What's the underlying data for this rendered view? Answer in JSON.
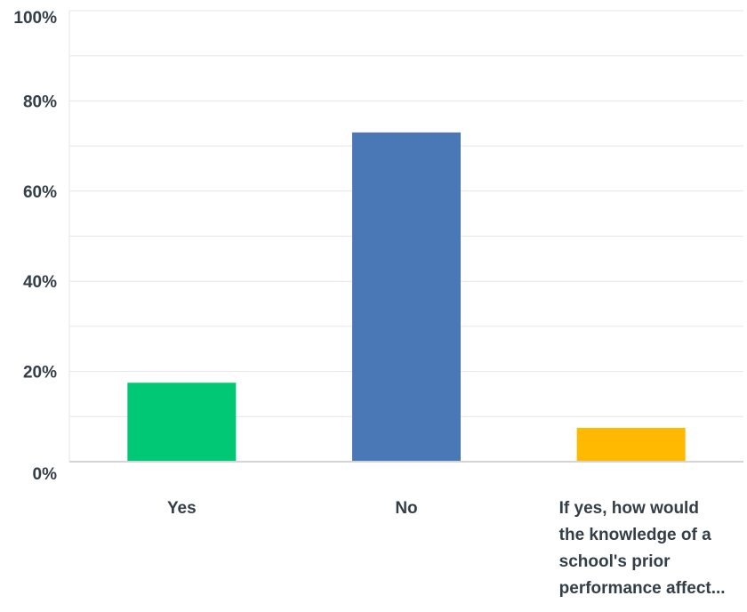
{
  "chart_data": {
    "type": "bar",
    "categories": [
      "Yes",
      "No",
      "If yes, how would the knowledge of a school's prior performance affect..."
    ],
    "category_label_lines": [
      [
        "Yes"
      ],
      [
        "No"
      ],
      [
        "If yes, how would",
        "the knowledge of a",
        "school's prior",
        "performance affect..."
      ]
    ],
    "values": [
      17.5,
      73,
      7.5
    ],
    "colors": [
      "#00c875",
      "#4a78b6",
      "#ffb900"
    ],
    "ylim": [
      0,
      100
    ],
    "y_ticks": [
      0,
      20,
      40,
      60,
      80,
      100
    ],
    "y_tick_labels": [
      "0%",
      "20%",
      "40%",
      "60%",
      "80%",
      "100%"
    ],
    "minor_grid": [
      10,
      30,
      50,
      70,
      90
    ],
    "grid": true,
    "title": "",
    "xlabel": "",
    "ylabel": ""
  }
}
